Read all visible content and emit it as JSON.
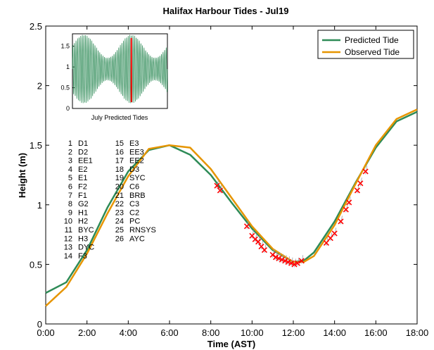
{
  "chart_data": {
    "type": "line",
    "title": "Halifax Harbour Tides - Jul19",
    "xlabel": "Time (AST)",
    "ylabel": "Height (m)",
    "xlim": [
      0,
      18
    ],
    "ylim": [
      0,
      2.5
    ],
    "x_ticks": [
      0,
      2,
      4,
      6,
      8,
      10,
      12,
      14,
      16,
      18
    ],
    "x_tick_labels": [
      "0:00",
      "2:00",
      "4:00",
      "6:00",
      "8:00",
      "10:00",
      "12:00",
      "14:00",
      "16:00",
      "18:00"
    ],
    "y_ticks": [
      0,
      0.5,
      1,
      1.5,
      2,
      2.5
    ],
    "y_tick_labels": [
      "0",
      "0.5",
      "1",
      "1.5",
      "2",
      "2.5"
    ],
    "grid": false,
    "legend_position": "top-right",
    "series": [
      {
        "name": "Predicted Tide",
        "color": "#2e8b57",
        "x": [
          0,
          1,
          2,
          3,
          4,
          5,
          6,
          7,
          8,
          9,
          10,
          11,
          12,
          12.5,
          13,
          14,
          15,
          16,
          17,
          18
        ],
        "y": [
          0.26,
          0.35,
          0.62,
          0.98,
          1.28,
          1.46,
          1.5,
          1.42,
          1.25,
          1.02,
          0.8,
          0.62,
          0.52,
          0.53,
          0.6,
          0.86,
          1.18,
          1.48,
          1.7,
          1.78
        ]
      },
      {
        "name": "Observed Tide",
        "color": "#e69500",
        "x": [
          0,
          1,
          2,
          3,
          4,
          5,
          6,
          7,
          8,
          9,
          10,
          11,
          12,
          12.5,
          13,
          14,
          15,
          16,
          17,
          18
        ],
        "y": [
          0.15,
          0.31,
          0.59,
          0.93,
          1.24,
          1.47,
          1.5,
          1.48,
          1.3,
          1.06,
          0.82,
          0.63,
          0.52,
          0.52,
          0.57,
          0.83,
          1.17,
          1.5,
          1.72,
          1.8
        ]
      }
    ],
    "station_observations": {
      "x": [
        8.3,
        8.45,
        9.75,
        10.0,
        10.15,
        10.3,
        10.45,
        10.6,
        11.0,
        11.15,
        11.3,
        11.45,
        11.6,
        11.75,
        11.9,
        12.05,
        12.2,
        12.4,
        13.6,
        13.8,
        14.0,
        14.3,
        14.55,
        14.7,
        15.1,
        15.25,
        15.5
      ],
      "y": [
        1.16,
        1.12,
        0.82,
        0.74,
        0.71,
        0.69,
        0.65,
        0.62,
        0.58,
        0.56,
        0.55,
        0.54,
        0.53,
        0.52,
        0.51,
        0.5,
        0.51,
        0.53,
        0.68,
        0.72,
        0.76,
        0.86,
        0.96,
        1.02,
        1.12,
        1.18,
        1.28
      ],
      "color": "#ff0000"
    },
    "station_list": [
      "1 D1",
      "2 D2",
      "3 EE1",
      "4 E2",
      "5 E1",
      "6 F2",
      "7 F1",
      "8 G2",
      "9 H1",
      "10 H2",
      "11 BYC",
      "12 H3",
      "13 DYC",
      "14 F3",
      "15 E3",
      "16 EE3",
      "17 EE2",
      "18 D3",
      "19 SYC",
      "20 C6",
      "21 BRB",
      "22 C3",
      "23 C2",
      "24 PC",
      "25 RNSYS",
      "26 AYC"
    ],
    "inset": {
      "xlabel": "July Predicted Tides",
      "ylim": [
        0,
        1.8
      ],
      "y_ticks": [
        0,
        0.5,
        1,
        1.5
      ],
      "y_tick_labels": [
        "0",
        "0.5",
        "1",
        "1.5"
      ],
      "series_color": "#2e8b57",
      "highlight_color": "#ff0000",
      "highlight_position": 0.62,
      "num_days": 31
    }
  }
}
